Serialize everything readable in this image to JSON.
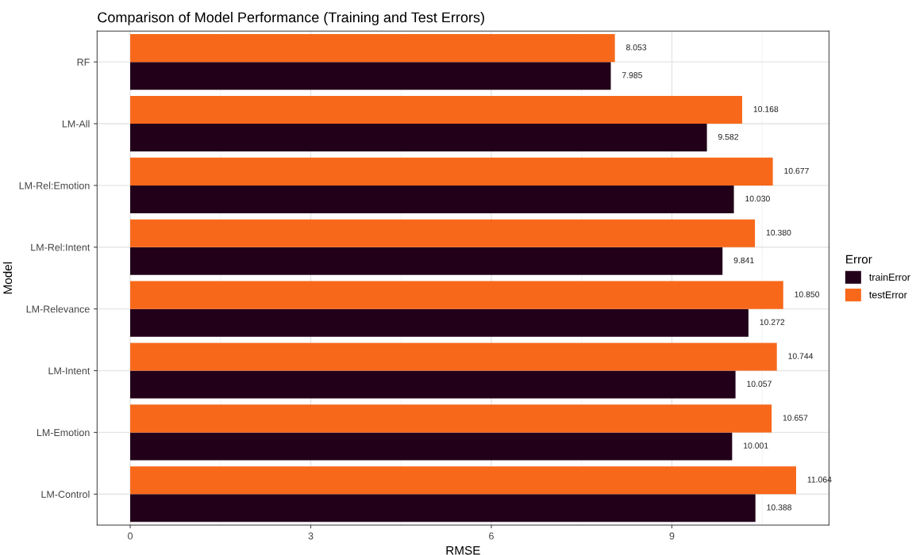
{
  "chart_data": {
    "type": "bar",
    "orientation": "horizontal",
    "title": "Comparison of Model Performance (Training and Test Errors)",
    "xlabel": "RMSE",
    "ylabel": "Model",
    "legend_title": "Error",
    "categories": [
      "RF",
      "LM-All",
      "LM-Rel:Emotion",
      "LM-Rel:Intent",
      "LM-Relevance",
      "LM-Intent",
      "LM-Emotion",
      "LM-Control"
    ],
    "series": [
      {
        "name": "trainError",
        "color": "#22001a",
        "values": [
          7.985,
          9.582,
          10.03,
          9.841,
          10.272,
          10.057,
          10.001,
          10.388
        ],
        "value_labels": [
          "7.985",
          "9.582",
          "10.030",
          "9.841",
          "10.272",
          "10.057",
          "10.001",
          "10.388"
        ]
      },
      {
        "name": "testError",
        "color": "#f8681a",
        "values": [
          8.053,
          10.168,
          10.677,
          10.38,
          10.85,
          10.744,
          10.657,
          11.064
        ],
        "value_labels": [
          "8.053",
          "10.168",
          "10.677",
          "10.380",
          "10.850",
          "10.744",
          "10.657",
          "11.064"
        ]
      }
    ],
    "xlim": [
      -0.55,
      11.61
    ],
    "xticks": [
      0,
      3,
      6,
      9
    ],
    "grid": true,
    "legend": "right"
  }
}
